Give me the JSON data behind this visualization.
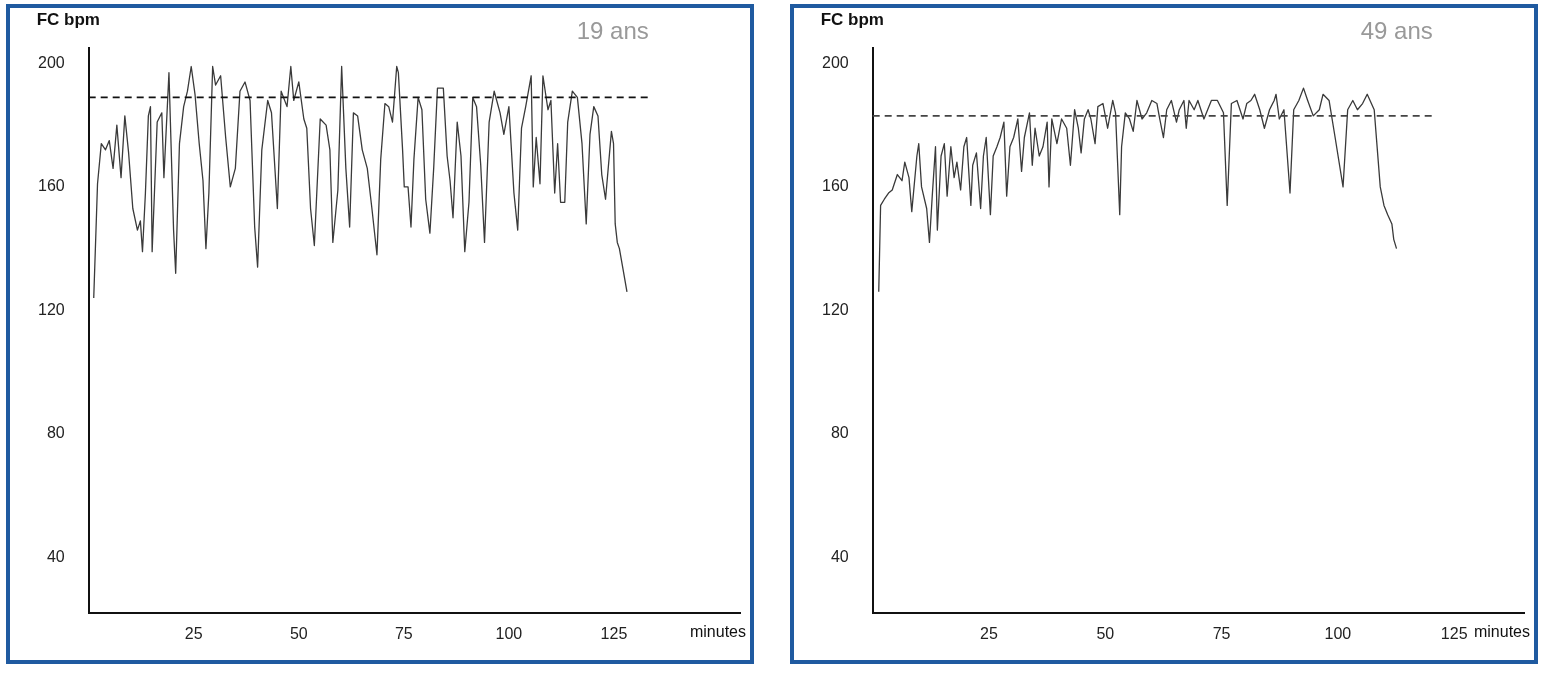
{
  "chart_data": [
    {
      "type": "line",
      "ylabel": "FC bpm",
      "xlabel": "minutes",
      "annotations": [
        "19 ans"
      ],
      "xlim": [
        0,
        155
      ],
      "xticks": [
        25,
        50,
        75,
        100,
        125
      ],
      "ylim": [
        22,
        205
      ],
      "yticks": [
        40,
        80,
        120,
        160,
        200
      ],
      "grid": false,
      "legend": false,
      "marker": "none",
      "line_style": "solid",
      "ref_lines": [
        {
          "axis": "y",
          "value": 189,
          "color": "#111111",
          "line_style": "dashed"
        }
      ],
      "series": [
        {
          "color": "#3a3a3a",
          "x": [
            1.2,
            2.1,
            3,
            4,
            4.9,
            5.8,
            6.7,
            7.7,
            8.6,
            9.5,
            10.5,
            11.6,
            12.3,
            12.8,
            13.5,
            14.2,
            14.7,
            15.1,
            16.3,
            17.4,
            17.9,
            19.1,
            20.2,
            20.7,
            21.6,
            22.6,
            23.5,
            24.4,
            25.3,
            26.3,
            27.2,
            27.9,
            28.6,
            29.5,
            30.2,
            31.4,
            32.6,
            33.7,
            34.9,
            36,
            37.2,
            38.4,
            39.5,
            40.2,
            41.2,
            42.6,
            43.5,
            44.9,
            45.8,
            47.2,
            48.1,
            48.8,
            50,
            51.2,
            51.9,
            52.8,
            53.7,
            55.1,
            56.5,
            57.4,
            58.1,
            59.3,
            60.2,
            61.2,
            62.1,
            63,
            64,
            65.1,
            66.3,
            67.4,
            68.6,
            69.5,
            70.5,
            71.4,
            72.3,
            73.3,
            73.7,
            74.7,
            75.1,
            76,
            76.7,
            77.4,
            78.4,
            79.3,
            80.2,
            81.2,
            82.1,
            83,
            84.4,
            85.3,
            86,
            86.7,
            87.7,
            88.6,
            89.5,
            90.5,
            91.4,
            92.3,
            93.3,
            94.2,
            95.3,
            96.5,
            97.9,
            98.8,
            100,
            101.2,
            102.1,
            103,
            104,
            105.3,
            105.8,
            106.5,
            107.4,
            108.1,
            109.3,
            110,
            110.9,
            111.6,
            112.3,
            113.3,
            114,
            115.1,
            116.3,
            117.4,
            118.4,
            119.3,
            120.2,
            121.2,
            122.1,
            123,
            124.4,
            124.9,
            125.3,
            125.8,
            126.3,
            127.2,
            128.1
          ],
          "values": [
            124,
            161,
            174,
            172,
            175,
            166,
            180,
            163,
            183,
            171,
            153,
            146,
            149,
            139,
            158,
            183,
            186,
            139,
            181,
            184,
            163,
            197,
            146,
            132,
            174,
            186,
            191,
            199,
            190,
            174,
            162,
            140,
            158,
            199,
            193,
            196,
            176,
            160,
            166,
            191,
            194,
            188,
            147,
            134,
            172,
            188,
            184,
            153,
            191,
            186,
            199,
            188,
            194,
            182,
            179,
            153,
            141,
            182,
            180,
            172,
            142,
            159,
            199,
            166,
            147,
            184,
            183,
            172,
            166,
            153,
            138,
            169,
            187,
            186,
            181,
            199,
            197,
            172,
            160,
            160,
            147,
            169,
            189,
            185,
            156,
            145,
            166,
            192,
            192,
            170,
            162,
            150,
            181,
            170,
            139,
            155,
            189,
            186,
            167,
            142,
            181,
            191,
            184,
            177,
            186,
            158,
            146,
            179,
            186,
            196,
            160,
            176,
            161,
            196,
            185,
            188,
            158,
            174,
            155,
            155,
            181,
            191,
            189,
            174,
            148,
            177,
            186,
            183,
            164,
            156,
            178,
            174,
            148,
            142,
            140,
            133,
            126
          ]
        }
      ]
    },
    {
      "type": "line",
      "ylabel": "FC bpm",
      "xlabel": "minutes",
      "annotations": [
        "49 ans"
      ],
      "xlim": [
        0,
        140
      ],
      "xticks": [
        25,
        50,
        75,
        100,
        125
      ],
      "ylim": [
        22,
        205
      ],
      "yticks": [
        40,
        80,
        120,
        160,
        200
      ],
      "grid": false,
      "legend": false,
      "marker": "none",
      "line_style": "solid",
      "ref_lines": [
        {
          "axis": "y",
          "value": 183,
          "color": "#444444",
          "line_style": "dashed"
        }
      ],
      "series": [
        {
          "color": "#3a3a3a",
          "x": [
            1.3,
            1.7,
            2.5,
            3.4,
            4.2,
            5.3,
            6.3,
            6.9,
            7.8,
            8.4,
            9.5,
            9.9,
            10.5,
            11.6,
            12.2,
            12.8,
            13.5,
            13.9,
            14.7,
            15.4,
            16,
            16.8,
            17.5,
            18.1,
            18.9,
            19.6,
            20.2,
            21.1,
            21.5,
            22.3,
            23.2,
            23.8,
            24.4,
            25.3,
            25.9,
            26.7,
            27.4,
            28.2,
            28.8,
            29.5,
            30.3,
            31.2,
            32,
            32.6,
            33.7,
            34.3,
            34.9,
            35.8,
            36.6,
            37.5,
            37.9,
            38.5,
            39.6,
            40.6,
            41.7,
            42.5,
            43.4,
            44.2,
            44.8,
            45.5,
            46.3,
            46.9,
            47.8,
            48.4,
            49.5,
            50.5,
            51.6,
            52.2,
            53.1,
            53.5,
            54.3,
            55.2,
            56,
            56.8,
            57.9,
            58.9,
            60,
            61.1,
            61.7,
            62.5,
            63.2,
            64.2,
            65.3,
            65.9,
            66.9,
            67.4,
            68,
            69.1,
            69.9,
            71.2,
            72,
            72.8,
            74.1,
            75.4,
            76.2,
            77.1,
            78.3,
            79.6,
            80.4,
            81.3,
            82.1,
            83.2,
            84.2,
            85.3,
            86.3,
            86.7,
            87.4,
            88.4,
            89.7,
            90.5,
            91.6,
            92.6,
            93.5,
            94.7,
            96,
            96.8,
            98.1,
            99.4,
            101.1,
            102.1,
            103.2,
            104.2,
            105.3,
            106.3,
            107.8,
            109.1,
            109.9,
            110.7,
            111.6,
            112,
            112.6
          ],
          "values": [
            126,
            154,
            156,
            158,
            159,
            164,
            162,
            168,
            163,
            152,
            170,
            174,
            160,
            153,
            142,
            157,
            173,
            146,
            170,
            174,
            157,
            173,
            163,
            168,
            159,
            173,
            176,
            154,
            167,
            171,
            153,
            170,
            176,
            151,
            170,
            173,
            176,
            181,
            157,
            173,
            176,
            182,
            165,
            176,
            184,
            167,
            179,
            170,
            173,
            181,
            160,
            182,
            174,
            182,
            179,
            167,
            185,
            179,
            171,
            182,
            185,
            182,
            174,
            186,
            187,
            179,
            188,
            184,
            151,
            173,
            184,
            182,
            178,
            188,
            182,
            184,
            188,
            187,
            182,
            176,
            185,
            188,
            181,
            185,
            188,
            179,
            188,
            185,
            188,
            182,
            185,
            188,
            188,
            184,
            154,
            187,
            188,
            182,
            187,
            188,
            190,
            185,
            179,
            185,
            188,
            190,
            182,
            185,
            158,
            185,
            188,
            192,
            188,
            183,
            185,
            190,
            188,
            176,
            160,
            185,
            188,
            185,
            187,
            190,
            185,
            160,
            154,
            151,
            148,
            143,
            140
          ]
        }
      ]
    }
  ]
}
